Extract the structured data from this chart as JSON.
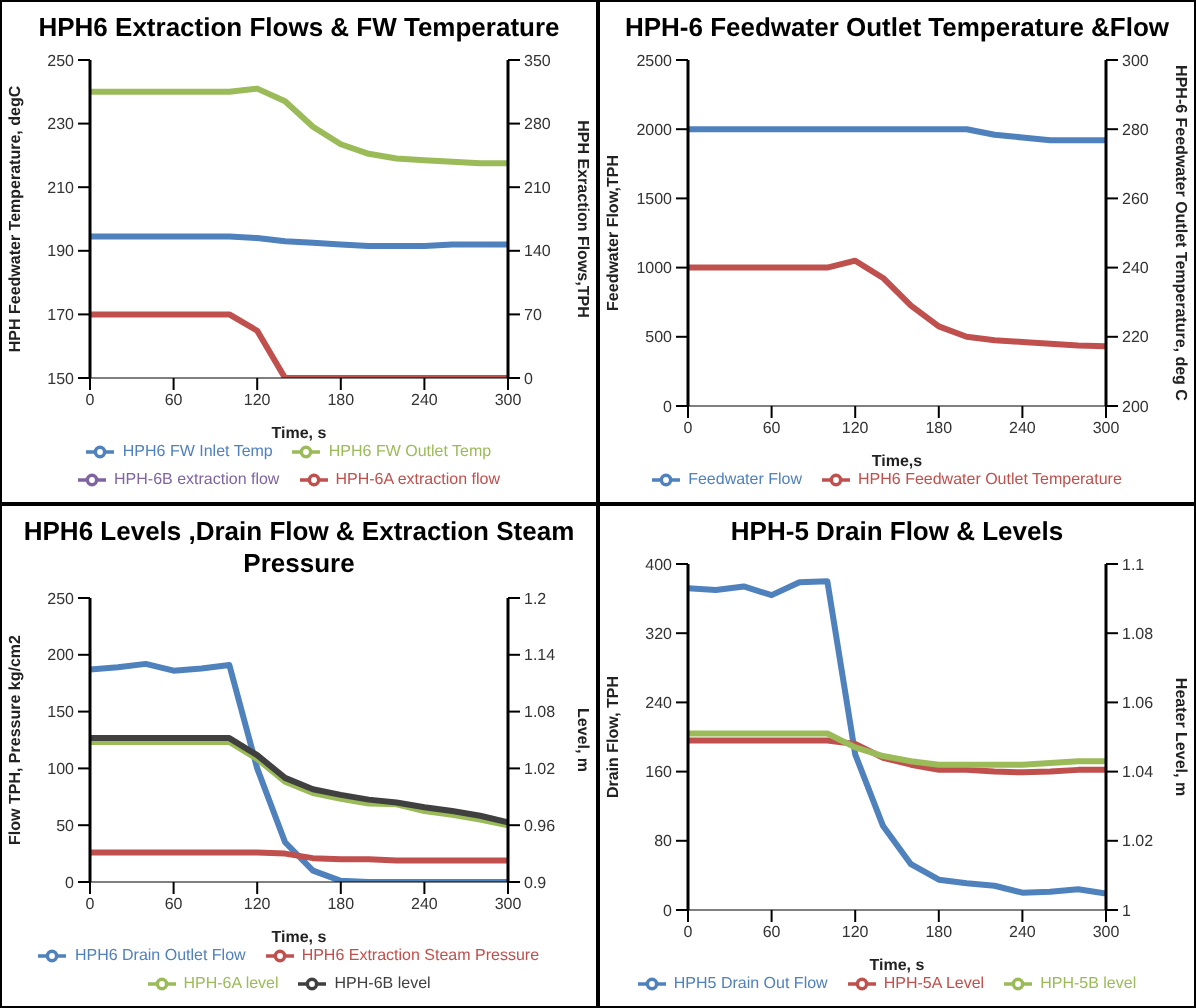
{
  "chart_data": [
    {
      "type": "line",
      "title": "HPH6 Extraction Flows & FW Temperature",
      "xlabel": "Time, s",
      "ylabel": "HPH Feedwater Temperature, degC",
      "y2label": "HPH Exraction Flows,TPH",
      "x": [
        0,
        20,
        40,
        60,
        80,
        100,
        120,
        140,
        160,
        180,
        200,
        220,
        240,
        260,
        280,
        300
      ],
      "xlim": [
        0,
        300
      ],
      "xticks": [
        0,
        60,
        120,
        180,
        240,
        300
      ],
      "ylim": [
        150,
        250
      ],
      "yticks": [
        150,
        170,
        190,
        210,
        230,
        250
      ],
      "y2lim": [
        0,
        350
      ],
      "y2ticks": [
        0,
        70,
        140,
        210,
        280,
        350
      ],
      "legend": "bottom",
      "series": [
        {
          "name": "HPH6 FW Inlet Temp",
          "color": "#4f81bd",
          "values": [
            194.5,
            194.5,
            194.5,
            194.5,
            194.5,
            194.5,
            194,
            193,
            192.5,
            192,
            191.5,
            191.5,
            191.5,
            192,
            192,
            192
          ]
        },
        {
          "name": "HPH6 FW Outlet Temp",
          "color": "#9bbb59",
          "values": [
            240,
            240,
            240,
            240,
            240,
            240,
            241,
            237,
            229,
            223.5,
            220.5,
            219,
            218.5,
            218,
            217.5,
            217.5
          ]
        },
        {
          "name": "HPH-6B extraction flow",
          "color": "#8064a2",
          "axis": "y2",
          "values": [
            null,
            null,
            null,
            null,
            null,
            null,
            null,
            null,
            null,
            null,
            null,
            null,
            null,
            null,
            null,
            null
          ]
        },
        {
          "name": "HPH-6A extraction flow",
          "color": "#c0504d",
          "axis": "y2",
          "values": [
            70,
            70,
            70,
            70,
            70,
            70,
            52,
            0,
            0,
            0,
            0,
            0,
            0,
            0,
            0,
            0
          ]
        }
      ]
    },
    {
      "type": "line",
      "title": "HPH-6 Feedwater Outlet Temperature &Flow",
      "xlabel": "Time,s",
      "ylabel": "Feedwater Flow,TPH",
      "y2label": "HPH-6 Feedwater Outlet Temperature, deg C",
      "x": [
        0,
        20,
        40,
        60,
        80,
        100,
        120,
        140,
        160,
        180,
        200,
        220,
        240,
        260,
        280,
        300
      ],
      "xlim": [
        0,
        300
      ],
      "xticks": [
        0,
        60,
        120,
        180,
        240,
        300
      ],
      "ylim": [
        0,
        2500
      ],
      "yticks": [
        0,
        500,
        1000,
        1500,
        2000,
        2500
      ],
      "y2lim": [
        200,
        300
      ],
      "y2ticks": [
        200,
        220,
        240,
        260,
        280,
        300
      ],
      "legend": "bottom",
      "series": [
        {
          "name": "Feedwater Flow",
          "color": "#4f81bd",
          "values": [
            2000,
            2000,
            2000,
            2000,
            2000,
            2000,
            2000,
            2000,
            2000,
            2000,
            2000,
            1960,
            1940,
            1920,
            1920,
            1920
          ]
        },
        {
          "name": "HPH6 Feedwater Outlet Temperature",
          "color": "#c0504d",
          "axis": "y2",
          "values": [
            240,
            240,
            240,
            240,
            240,
            240,
            242,
            237,
            229,
            223,
            220,
            219,
            218.5,
            218,
            217.5,
            217.3
          ]
        }
      ]
    },
    {
      "type": "line",
      "title": "HPH6 Levels ,Drain Flow & Extraction Steam Pressure",
      "xlabel": "Time, s",
      "ylabel": "Flow TPH, Pressure kg/cm2",
      "y2label": "Level, m",
      "x": [
        0,
        20,
        40,
        60,
        80,
        100,
        120,
        140,
        160,
        180,
        200,
        220,
        240,
        260,
        280,
        300
      ],
      "xlim": [
        0,
        300
      ],
      "xticks": [
        0,
        60,
        120,
        180,
        240,
        300
      ],
      "ylim": [
        0,
        250
      ],
      "yticks": [
        0,
        50,
        100,
        150,
        200,
        250
      ],
      "y2lim": [
        0.9,
        1.2
      ],
      "y2ticks": [
        0.9,
        0.96,
        1.02,
        1.08,
        1.14,
        1.2
      ],
      "legend": "bottom",
      "series": [
        {
          "name": "HPH6 Drain Outlet Flow",
          "color": "#4f81bd",
          "values": [
            187,
            189,
            192,
            186,
            188,
            191,
            100,
            35,
            10,
            1,
            0,
            0,
            0,
            0,
            0,
            0
          ]
        },
        {
          "name": "HPH6 Extraction Steam Pressure",
          "color": "#c0504d",
          "values": [
            26,
            26,
            26,
            26,
            26,
            26,
            26,
            25,
            21,
            20,
            20,
            19,
            19,
            19,
            19,
            19
          ]
        },
        {
          "name": "HPH-6A level",
          "color": "#9bbb59",
          "axis": "y2",
          "values": [
            1.048,
            1.048,
            1.048,
            1.048,
            1.048,
            1.048,
            1.03,
            1.006,
            0.994,
            0.988,
            0.983,
            0.982,
            0.975,
            0.971,
            0.966,
            0.96
          ]
        },
        {
          "name": "HPH-6B level",
          "color": "#404040",
          "axis": "y2",
          "values": [
            1.052,
            1.052,
            1.052,
            1.052,
            1.052,
            1.052,
            1.034,
            1.01,
            0.998,
            0.992,
            0.987,
            0.984,
            0.979,
            0.975,
            0.97,
            0.963
          ]
        }
      ]
    },
    {
      "type": "line",
      "title": "HPH-5 Drain Flow & Levels",
      "xlabel": "Time, s",
      "ylabel": "Drain Flow, TPH",
      "y2label": "Heater Level, m",
      "x": [
        0,
        20,
        40,
        60,
        80,
        100,
        120,
        140,
        160,
        180,
        200,
        220,
        240,
        260,
        280,
        300
      ],
      "xlim": [
        0,
        300
      ],
      "xticks": [
        0,
        60,
        120,
        180,
        240,
        300
      ],
      "ylim": [
        0,
        400
      ],
      "yticks": [
        0,
        80,
        160,
        240,
        320,
        400
      ],
      "y2lim": [
        1,
        1.1
      ],
      "y2ticks": [
        1,
        1.02,
        1.04,
        1.06,
        1.08,
        1.1
      ],
      "legend": "bottom",
      "series": [
        {
          "name": "HPH5 Drain Out Flow",
          "color": "#4f81bd",
          "values": [
            372,
            370,
            374,
            364,
            379,
            380,
            180,
            97,
            53,
            35,
            31,
            28,
            20,
            21,
            24,
            19
          ]
        },
        {
          "name": "HPH-5A Level",
          "color": "#c0504d",
          "axis": "y2",
          "values": [
            1.049,
            1.049,
            1.049,
            1.049,
            1.049,
            1.049,
            1.048,
            1.044,
            1.042,
            1.0405,
            1.0405,
            1.04,
            1.0398,
            1.04,
            1.0405,
            1.0405
          ]
        },
        {
          "name": "HPH-5B level",
          "color": "#9bbb59",
          "axis": "y2",
          "values": [
            1.051,
            1.051,
            1.051,
            1.051,
            1.051,
            1.051,
            1.047,
            1.0445,
            1.043,
            1.042,
            1.042,
            1.042,
            1.042,
            1.0425,
            1.043,
            1.043
          ]
        }
      ]
    }
  ]
}
